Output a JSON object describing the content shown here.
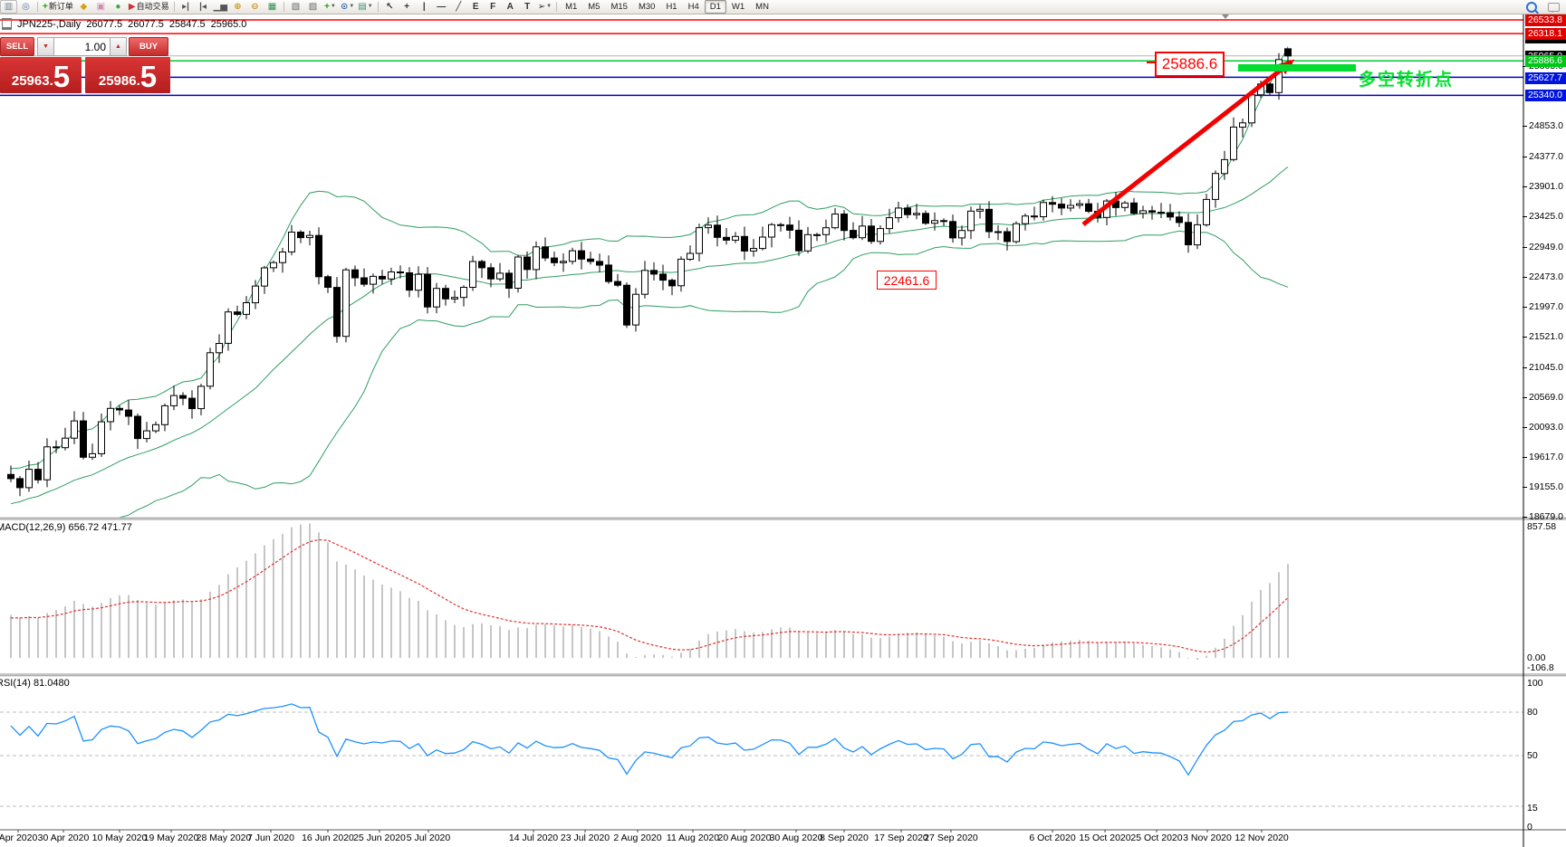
{
  "toolbar": {
    "icons": [
      {
        "name": "chart-window-icon",
        "glyph": "▥",
        "color": "#6b7f93"
      },
      {
        "name": "data-window-icon",
        "glyph": "◎",
        "color": "#5b79ae"
      },
      {
        "name": "separator"
      },
      {
        "name": "new-order-button",
        "glyph": "+",
        "color": "#17a317",
        "label": "新订单"
      },
      {
        "name": "market-watch-icon",
        "glyph": "◆",
        "color": "#d4a017"
      },
      {
        "name": "navigator-icon",
        "glyph": "▣",
        "color": "#cf8ab2"
      },
      {
        "name": "terminal-icon",
        "glyph": "●",
        "color": "#3fa34d"
      },
      {
        "name": "autotrading-button",
        "glyph": "▶",
        "color": "#cc3333",
        "label": "自动交易"
      },
      {
        "name": "separator"
      },
      {
        "name": "autoscroll-icon",
        "glyph": "▸|",
        "color": "#555555"
      },
      {
        "name": "chart-shift-icon",
        "glyph": "|◂",
        "color": "#555555"
      },
      {
        "name": "barchart-icon",
        "glyph": "▁▅",
        "color": "#555555"
      },
      {
        "name": "zoom-in-icon",
        "glyph": "⊕",
        "color": "#c79b2e"
      },
      {
        "name": "zoom-out-icon",
        "glyph": "⊖",
        "color": "#c79b2e"
      },
      {
        "name": "tile-windows-icon",
        "glyph": "▦",
        "color": "#2f8f4f"
      },
      {
        "name": "separator"
      },
      {
        "name": "new-chart-icon",
        "glyph": "▧",
        "color": "#666666"
      },
      {
        "name": "chart-list-icon",
        "glyph": "▨",
        "color": "#666666"
      },
      {
        "name": "indicators-button",
        "glyph": "+",
        "color": "#17a317",
        "dropdown": true
      },
      {
        "name": "periods-button",
        "glyph": "⊙",
        "color": "#3a6ea5",
        "dropdown": true
      },
      {
        "name": "templates-button",
        "glyph": "▤",
        "color": "#3a8f6e",
        "dropdown": true
      },
      {
        "name": "separator"
      },
      {
        "name": "cursor-icon",
        "glyph": "↖",
        "color": "#333333"
      },
      {
        "name": "crosshair-icon",
        "glyph": "+",
        "color": "#333333"
      },
      {
        "name": "vline-icon",
        "glyph": "|",
        "color": "#333333"
      },
      {
        "name": "hline-icon",
        "glyph": "—",
        "color": "#333333"
      },
      {
        "name": "trendline-icon",
        "glyph": "╱",
        "color": "#333333"
      },
      {
        "name": "channel-icon",
        "glyph": "E",
        "color": "#333333"
      },
      {
        "name": "fibonacci-icon",
        "glyph": "F",
        "color": "#333333"
      },
      {
        "name": "text-icon",
        "glyph": "A",
        "color": "#333333"
      },
      {
        "name": "label-icon",
        "glyph": "T",
        "color": "#333333"
      },
      {
        "name": "arrows-icon",
        "glyph": "➢",
        "color": "#333333",
        "dropdown": true
      },
      {
        "name": "separator"
      }
    ],
    "timeframes": [
      "M1",
      "M5",
      "M15",
      "M30",
      "H1",
      "H4",
      "D1",
      "W1",
      "MN"
    ],
    "active_timeframe": "D1"
  },
  "title": {
    "symbol_period": "JPN225-,Daily",
    "open": "26077.5",
    "high": "26077.5",
    "low": "25847.5",
    "close": "25965.0"
  },
  "trade_panel": {
    "sell_label": "SELL",
    "buy_label": "BUY",
    "volume": "1.00",
    "bid_int": "25963",
    "bid_frac": "5",
    "ask_int": "25986",
    "ask_frac": "5"
  },
  "price_axis": {
    "line_labels": [
      {
        "text": "",
        "bg": "#000000",
        "y": 42.5,
        "h": 5
      },
      {
        "text": "25965.0",
        "bg": "#000000",
        "y": 55.5
      },
      {
        "text": "26533.8",
        "bg": "#e00000",
        "y": 15.5
      },
      {
        "text": "26318.1",
        "bg": "#e00000",
        "y": 31
      },
      {
        "text": "25886.6",
        "bg": "#00c819",
        "y": 61
      },
      {
        "text": "25627.7",
        "bg": "#0014dc",
        "y": 80
      },
      {
        "text": "25340.0",
        "bg": "#0014dc",
        "y": 99
      }
    ],
    "tick_labels": [
      "25805.0",
      "24853.0",
      "24377.0",
      "23901.0",
      "23425.0",
      "22949.0",
      "22473.0",
      "21997.0",
      "21521.0",
      "21045.0",
      "20569.0",
      "20093.0",
      "19617.0",
      "19155.0",
      "18679.0"
    ]
  },
  "macd_panel": {
    "name_label": "MACD(12,26,9)",
    "values_label": "656.72 471.77",
    "scale_top": "857.58",
    "scale_zero": "0.00",
    "scale_min": "-106.8"
  },
  "rsi_panel": {
    "name_label": "RSI(14)",
    "value_label": "81.0480",
    "scale_labels": [
      "100",
      "80",
      "50",
      "15",
      "0"
    ]
  },
  "annotations": {
    "resistance_label": "25886.6",
    "mid_label": "22461.6",
    "turning_point_text": "多空转折点"
  },
  "chart_data": {
    "type": "candlestick",
    "symbol": "JPN225",
    "period": "Daily",
    "visible_ohlc": {
      "open": 26077.5,
      "high": 26077.5,
      "low": 25847.5,
      "close": 25965.0
    },
    "bid": 25963.5,
    "ask": 25986.5,
    "closes": [
      19281,
      19138,
      19429,
      19262,
      19783,
      19771,
      19921,
      20194,
      19619,
      19675,
      20180,
      20391,
      20366,
      20267,
      19915,
      20037,
      20134,
      20433,
      20595,
      20552,
      20388,
      20741,
      21271,
      21419,
      21916,
      21878,
      22062,
      22326,
      22614,
      22696,
      22864,
      23178,
      23091,
      23125,
      22473,
      22305,
      21531,
      22582,
      22456,
      22355,
      22479,
      22437,
      22549,
      22534,
      22260,
      22512,
      21995,
      22288,
      22122,
      22146,
      22306,
      22714,
      22615,
      22439,
      22529,
      22291,
      22785,
      22587,
      22946,
      22770,
      22696,
      22717,
      22884,
      22752,
      22715,
      22657,
      22397,
      22339,
      21710,
      22195,
      22573,
      22514,
      22418,
      22330,
      22750,
      22843,
      23249,
      23289,
      23096,
      23051,
      23110,
      22880,
      22920,
      23100,
      23296,
      23290,
      23208,
      22882,
      23139,
      23138,
      23247,
      23465,
      23205,
      23089,
      23274,
      23032,
      23235,
      23406,
      23559,
      23454,
      23475,
      23319,
      23360,
      23346,
      23087,
      23204,
      23511,
      23539,
      23185,
      23185,
      23029,
      23312,
      23433,
      23422,
      23647,
      23620,
      23559,
      23601,
      23626,
      23507,
      23411,
      23671,
      23567,
      23639,
      23474,
      23516,
      23494,
      23486,
      23418,
      23331,
      22977,
      23295,
      23695,
      24105,
      24325,
      24839,
      24906,
      25349,
      25521,
      25385,
      25907,
      25965
    ],
    "last_candle": {
      "open": 26077.5,
      "high": 26077.5,
      "low": 25847.5,
      "close": 25965.0
    },
    "x_dates": [
      "Apr 2020",
      "30 Apr 2020",
      "10 May 2020",
      "19 May 2020",
      "28 May 2020",
      "7 Jun 2020",
      "16 Jun 2020",
      "25 Jun 2020",
      "5 Jul 2020",
      "14 Jul 2020",
      "23 Jul 2020",
      "2 Aug 2020",
      "11 Aug 2020",
      "20 Aug 2020",
      "30 Aug 2020",
      "8 Sep 2020",
      "17 Sep 2020",
      "27 Sep 2020",
      "6 Oct 2020",
      "15 Oct 2020",
      "25 Oct 2020",
      "3 Nov 2020",
      "12 Nov 2020"
    ],
    "y_ticks": [
      25805,
      24853,
      24377,
      23901,
      23425,
      22949,
      22473,
      21997,
      21521,
      21045,
      20569,
      20093,
      19617,
      19155,
      18679
    ],
    "level_lines": [
      {
        "price": 26533.8,
        "color": "#ff0000",
        "w": 1.5
      },
      {
        "price": 26318.1,
        "color": "#ff0000",
        "w": 1.5
      },
      {
        "price": 25965.0,
        "color": "#b4b4b4",
        "w": 1
      },
      {
        "price": 25886.6,
        "color": "#00c832",
        "w": 1.5
      },
      {
        "price": 25627.7,
        "color": "#0000c8",
        "w": 1.5
      },
      {
        "price": 25340.0,
        "color": "#0000c8",
        "w": 1.5
      }
    ],
    "indicators": {
      "bollinger": {
        "period": 20,
        "deviation": 2,
        "color": "#2e9e63"
      },
      "macd": {
        "fast": 12,
        "slow": 26,
        "signal": 9,
        "current_main": 656.72,
        "current_signal": 471.77,
        "scale_max": 857.58,
        "scale_min": -106.8,
        "hist_color": "#c6c6c6",
        "signal_color": "#e03232"
      },
      "rsi": {
        "period": 14,
        "current": 81.048,
        "levels": [
          80,
          50,
          15
        ],
        "color": "#1E90FF"
      }
    }
  }
}
